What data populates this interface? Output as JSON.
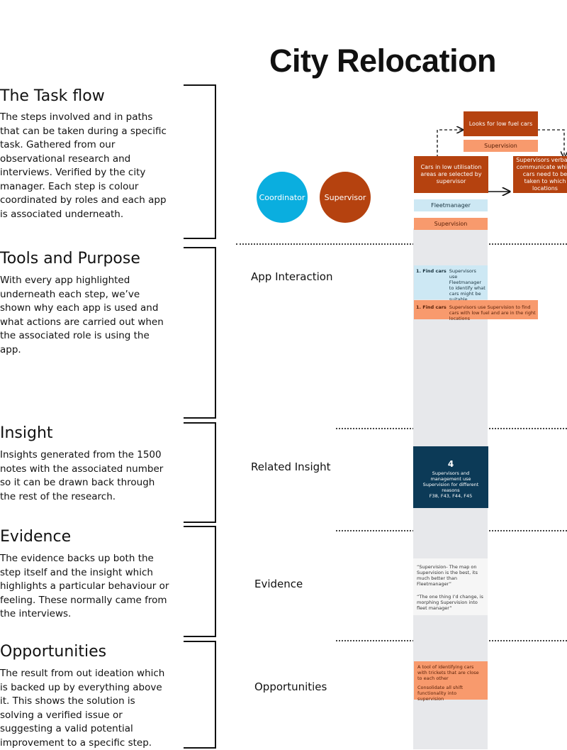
{
  "title": "City Relocation",
  "sections": [
    {
      "heading": "The Task flow",
      "body": "The steps involved and in paths that can be taken during a specific task. Gathered from our observational research and interviews. Verified by the city manager. Each step is colour coordinated by roles and each app is associated underneath."
    },
    {
      "heading": "Tools and Purpose",
      "body": "With every app highlighted underneath each step, we’ve shown why each app is used and what actions are carried out when the associated role is using the app."
    },
    {
      "heading": "Insight",
      "body": "Insights generated from the 1500 notes with the associated number so it can be drawn back through the rest of the research."
    },
    {
      "heading": "Evidence",
      "body": "The evidence backs up both the step itself and the insight which highlights a particular behaviour or feeling. These normally came from the interviews."
    },
    {
      "heading": "Opportunities",
      "body": "The result from out ideation which is backed up by everything above it. This shows the solution is solving a verified issue or suggesting a valid potential improvement to a specific step."
    }
  ],
  "roles": {
    "coordinator": "Coordinator",
    "supervisor": "Supervisor"
  },
  "colors": {
    "coordinator": "#0aaedf",
    "supervisor": "#b5420f",
    "step": "#b5420f",
    "supervision_app": "#f89a6d",
    "fleetmanager_app": "#cde8f4",
    "insight": "#0c3a57"
  },
  "flow": {
    "step_main": "Cars in low utilisation areas are selected by supervisor",
    "step_top": "Looks for low fuel cars",
    "step_top_app": "Supervision",
    "step_right": "Supervisors verbally communicate which cars need to be taken to which locations",
    "app_fleet": "Fleetmanager",
    "app_supervision": "Supervision"
  },
  "row_labels": {
    "app_interaction": "App Interaction",
    "related_insight": "Related Insight",
    "evidence": "Evidence",
    "opportunities": "Opportunities"
  },
  "app_interaction": [
    {
      "label": "1. Find cars",
      "text": "Supervisors use Fleetmanager to identify what cars might be suitable candidates to be relocated."
    },
    {
      "label": "1. Find cars",
      "text": "Supervisors use Supervision to find cars with low fuel and are in the right locations"
    }
  ],
  "insight": {
    "number": "4",
    "text": "Supervisors and management use Supervision for different reasons",
    "refs": "F38, F43, F44, F45"
  },
  "evidence": [
    "“Supervision- The map on Supervision is the best, its much better than Fleetmanager”",
    "“The one thing I’d change, is morphing Supervision into fleet manager”"
  ],
  "opportunities": [
    "A tool of identifying cars with trickets that are close to each other",
    "Consolidate all shift functionality into supervision"
  ]
}
